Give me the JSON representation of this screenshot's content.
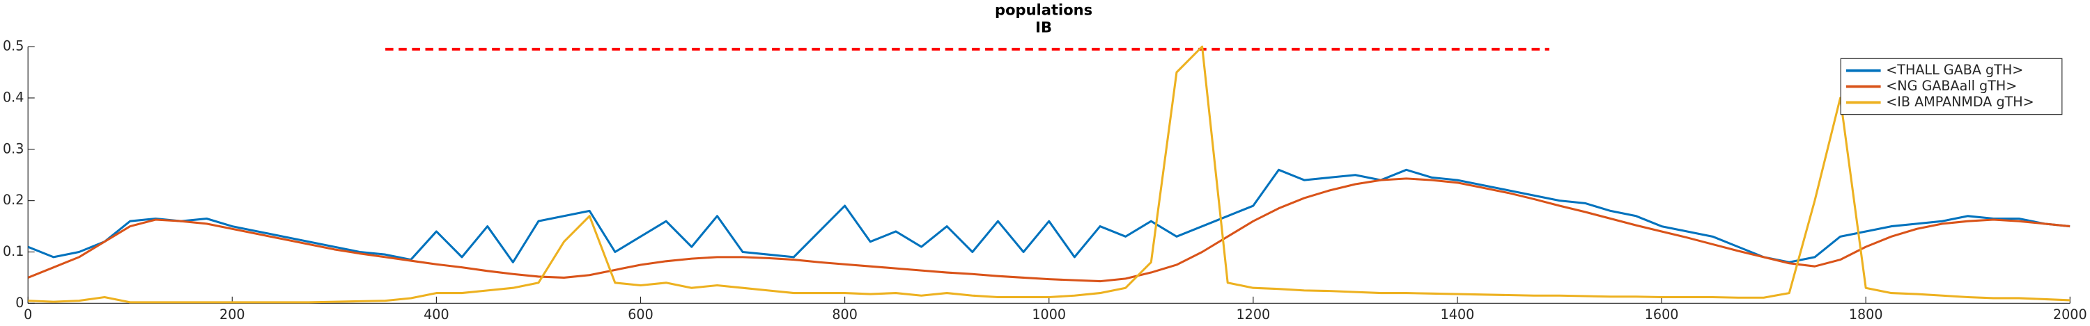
{
  "chart_data": {
    "type": "line",
    "title": "populations",
    "subtitle": "IB",
    "x": [
      0,
      25,
      50,
      75,
      100,
      125,
      150,
      175,
      200,
      225,
      250,
      275,
      300,
      325,
      350,
      375,
      400,
      425,
      450,
      475,
      500,
      525,
      550,
      575,
      600,
      625,
      650,
      675,
      700,
      725,
      750,
      775,
      800,
      825,
      850,
      875,
      900,
      925,
      950,
      975,
      1000,
      1025,
      1050,
      1075,
      1100,
      1125,
      1150,
      1175,
      1200,
      1225,
      1250,
      1275,
      1300,
      1325,
      1350,
      1375,
      1400,
      1425,
      1450,
      1475,
      1500,
      1525,
      1550,
      1575,
      1600,
      1625,
      1650,
      1675,
      1700,
      1725,
      1750,
      1775,
      1800,
      1825,
      1850,
      1875,
      1900,
      1925,
      1950,
      1975,
      2000
    ],
    "series": [
      {
        "name": "<THALL GABA gTH>",
        "color": "#0072bd",
        "values": [
          0.11,
          0.09,
          0.1,
          0.12,
          0.16,
          0.165,
          0.16,
          0.165,
          0.15,
          0.14,
          0.13,
          0.12,
          0.11,
          0.1,
          0.095,
          0.085,
          0.14,
          0.09,
          0.15,
          0.08,
          0.16,
          0.17,
          0.18,
          0.1,
          0.13,
          0.16,
          0.11,
          0.17,
          0.1,
          0.095,
          0.09,
          0.14,
          0.19,
          0.12,
          0.14,
          0.11,
          0.15,
          0.1,
          0.16,
          0.1,
          0.16,
          0.09,
          0.15,
          0.13,
          0.16,
          0.13,
          0.15,
          0.17,
          0.19,
          0.26,
          0.24,
          0.245,
          0.25,
          0.24,
          0.26,
          0.245,
          0.24,
          0.23,
          0.22,
          0.21,
          0.2,
          0.195,
          0.18,
          0.17,
          0.15,
          0.14,
          0.13,
          0.11,
          0.09,
          0.08,
          0.09,
          0.13,
          0.14,
          0.15,
          0.155,
          0.16,
          0.17,
          0.165,
          0.165,
          0.155,
          0.15
        ]
      },
      {
        "name": "<NG GABAall gTH>",
        "color": "#d95319",
        "values": [
          0.05,
          0.07,
          0.09,
          0.12,
          0.15,
          0.163,
          0.16,
          0.155,
          0.145,
          0.135,
          0.125,
          0.115,
          0.105,
          0.097,
          0.09,
          0.083,
          0.076,
          0.07,
          0.063,
          0.057,
          0.052,
          0.05,
          0.055,
          0.065,
          0.075,
          0.082,
          0.087,
          0.09,
          0.09,
          0.088,
          0.085,
          0.08,
          0.076,
          0.072,
          0.068,
          0.064,
          0.06,
          0.057,
          0.053,
          0.05,
          0.047,
          0.045,
          0.043,
          0.048,
          0.06,
          0.075,
          0.1,
          0.13,
          0.16,
          0.185,
          0.205,
          0.22,
          0.232,
          0.24,
          0.243,
          0.24,
          0.235,
          0.225,
          0.215,
          0.203,
          0.19,
          0.178,
          0.165,
          0.152,
          0.14,
          0.128,
          0.115,
          0.102,
          0.09,
          0.078,
          0.072,
          0.085,
          0.11,
          0.13,
          0.145,
          0.155,
          0.16,
          0.163,
          0.16,
          0.155,
          0.15
        ]
      },
      {
        "name": "<IB AMPANMDA gTH>",
        "color": "#edb120",
        "values": [
          0.005,
          0.003,
          0.005,
          0.012,
          0.002,
          0.002,
          0.002,
          0.002,
          0.002,
          0.002,
          0.002,
          0.002,
          0.003,
          0.004,
          0.005,
          0.01,
          0.02,
          0.02,
          0.025,
          0.03,
          0.04,
          0.12,
          0.17,
          0.04,
          0.035,
          0.04,
          0.03,
          0.035,
          0.03,
          0.025,
          0.02,
          0.02,
          0.02,
          0.018,
          0.02,
          0.015,
          0.02,
          0.015,
          0.012,
          0.012,
          0.012,
          0.015,
          0.02,
          0.03,
          0.08,
          0.45,
          0.5,
          0.04,
          0.03,
          0.028,
          0.025,
          0.024,
          0.022,
          0.02,
          0.02,
          0.019,
          0.018,
          0.017,
          0.016,
          0.015,
          0.015,
          0.014,
          0.013,
          0.013,
          0.012,
          0.012,
          0.012,
          0.011,
          0.011,
          0.02,
          0.2,
          0.4,
          0.03,
          0.02,
          0.018,
          0.015,
          0.012,
          0.01,
          0.01,
          0.008,
          0.006
        ]
      }
    ],
    "hline": {
      "value": 0.495,
      "xmin": 350,
      "xmax": 1490,
      "color": "#ff0000",
      "style": "dashed"
    },
    "xlim": [
      0,
      2000
    ],
    "xticks": [
      0,
      200,
      400,
      600,
      800,
      1000,
      1200,
      1400,
      1600,
      1800,
      2000
    ],
    "ylim": [
      0,
      0.5
    ],
    "yticks": [
      0,
      0.1,
      0.2,
      0.3,
      0.4,
      0.5
    ],
    "legend": "northeast"
  }
}
